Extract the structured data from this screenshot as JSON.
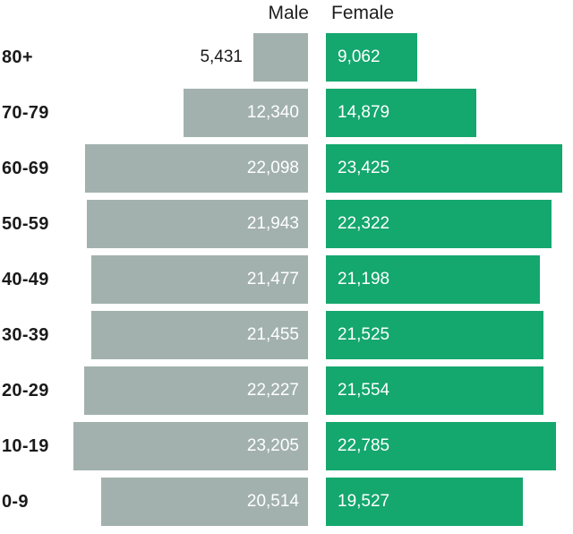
{
  "chart": {
    "male_header": "Male",
    "female_header": "Female"
  },
  "chart_data": {
    "type": "bar",
    "subtype": "population-pyramid",
    "orientation": "horizontal",
    "title": "",
    "xlabel": "",
    "ylabel": "",
    "categories": [
      "80+",
      "70-79",
      "60-69",
      "50-59",
      "40-49",
      "30-39",
      "20-29",
      "10-19",
      "0-9"
    ],
    "series": [
      {
        "name": "Male",
        "side": "left",
        "color": "#a2b1ad",
        "values": [
          5431,
          12340,
          22098,
          21943,
          21477,
          21455,
          22227,
          23205,
          20514
        ],
        "labels": [
          "5,431",
          "12,340",
          "22,098",
          "21,943",
          "21,477",
          "21,455",
          "22,227",
          "23,205",
          "20,514"
        ]
      },
      {
        "name": "Female",
        "side": "right",
        "color": "#14a76e",
        "values": [
          9062,
          14879,
          23425,
          22322,
          21198,
          21525,
          21554,
          22785,
          19527
        ],
        "labels": [
          "9,062",
          "14,879",
          "23,425",
          "22,322",
          "21,198",
          "21,525",
          "21,554",
          "22,785",
          "19,527"
        ]
      }
    ],
    "value_label_color_inside": "#ffffff",
    "value_label_color_outside": "#1a1a1a",
    "legend_position": "top",
    "grid": "off",
    "axis_ticks": "none"
  }
}
